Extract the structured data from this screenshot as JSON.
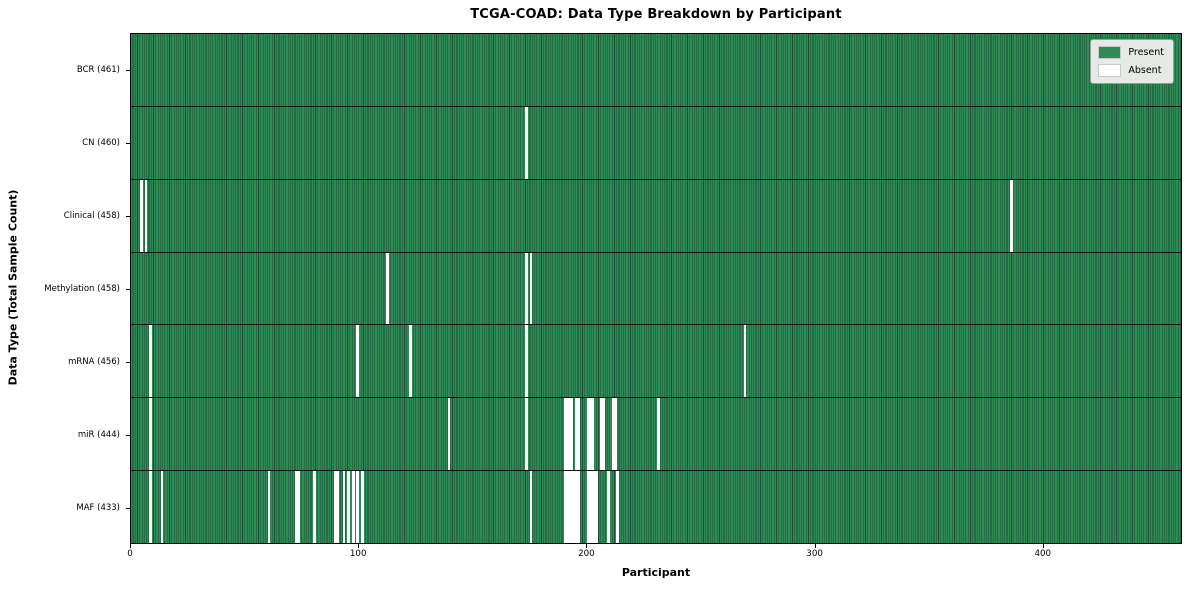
{
  "title": "TCGA-COAD: Data Type Breakdown by Participant",
  "x_axis_label": "Participant",
  "y_axis_label": "Data Type (Total Sample Count)",
  "legend": {
    "present_label": "Present",
    "absent_label": "Absent"
  },
  "colors": {
    "present": "#2e8b57",
    "absent": "#ffffff",
    "gridline": "#1b4f31",
    "legend_bg": "#e6eae6",
    "frame": "#000000"
  },
  "chart_data": {
    "type": "heatmap",
    "title": "TCGA-COAD: Data Type Breakdown by Participant",
    "xlabel": "Participant",
    "ylabel": "Data Type (Total Sample Count)",
    "legend": [
      "Present",
      "Absent"
    ],
    "legend_position": "upper right",
    "grid": "per-participant vertical gridlines, black row separators",
    "n_participants": 461,
    "xlim": [
      0,
      461
    ],
    "x_ticks": [
      0,
      100,
      200,
      300,
      400
    ],
    "rows": [
      {
        "name": "BCR",
        "label": "BCR (461)",
        "present_count": 461,
        "absent_participants": []
      },
      {
        "name": "CN",
        "label": "CN (460)",
        "present_count": 460,
        "absent_participants": [
          173
        ]
      },
      {
        "name": "Clinical",
        "label": "Clinical (458)",
        "present_count": 458,
        "absent_participants": [
          4,
          6,
          386
        ]
      },
      {
        "name": "Methylation",
        "label": "Methylation (458)",
        "present_count": 458,
        "absent_participants": [
          112,
          173,
          175
        ]
      },
      {
        "name": "mRNA",
        "label": "mRNA (456)",
        "present_count": 456,
        "absent_participants": [
          8,
          99,
          122,
          173,
          269
        ]
      },
      {
        "name": "miR",
        "label": "miR (444)",
        "present_count": 444,
        "absent_participants": [
          8,
          139,
          173,
          190,
          191,
          192,
          193,
          195,
          196,
          200,
          201,
          202,
          206,
          207,
          211,
          212,
          231
        ]
      },
      {
        "name": "MAF",
        "label": "MAF (433)",
        "present_count": 433,
        "absent_participants": [
          8,
          13,
          60,
          72,
          73,
          80,
          89,
          90,
          93,
          95,
          97,
          99,
          101,
          175,
          190,
          191,
          192,
          193,
          194,
          195,
          196,
          200,
          201,
          202,
          203,
          204,
          209,
          213
        ]
      }
    ]
  }
}
